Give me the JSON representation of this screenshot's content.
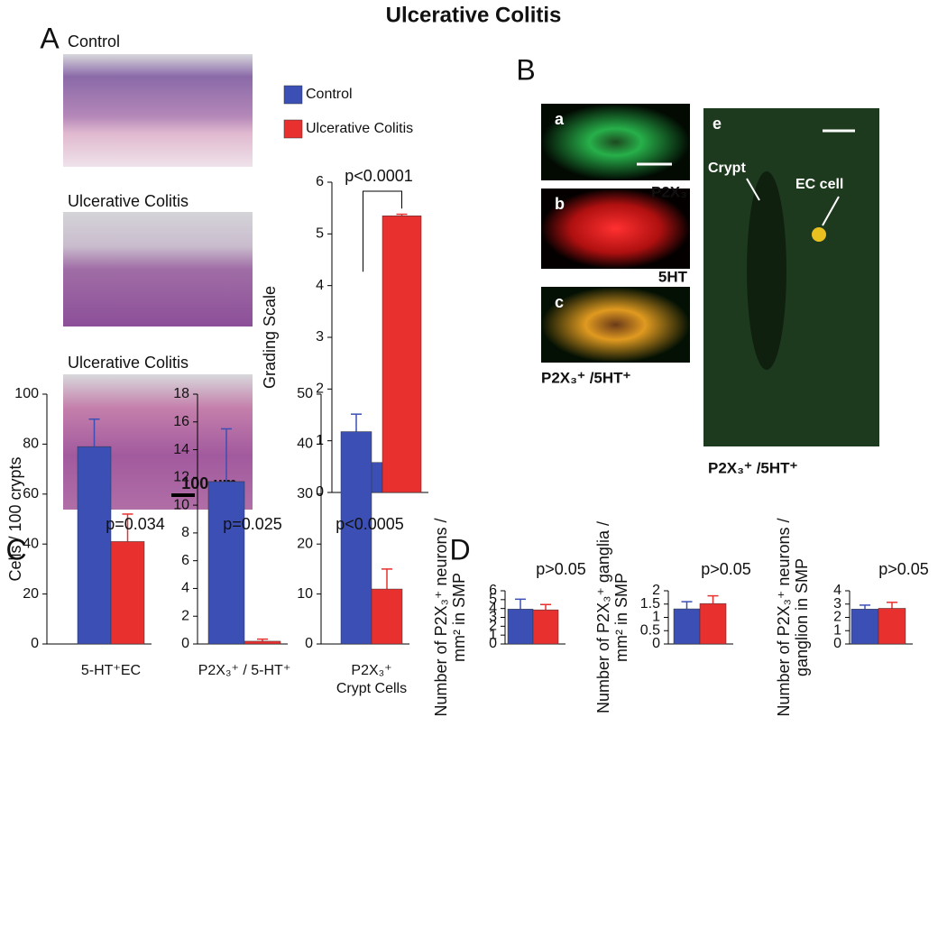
{
  "title": "Ulcerative Colitis",
  "panel_labels": [
    "A",
    "B",
    "C",
    "D"
  ],
  "histology": {
    "labels": [
      "Control",
      "Ulcerative Colitis",
      "Ulcerative Colitis"
    ],
    "scale_bar": "100 µm"
  },
  "fluorescence": {
    "letters": [
      "a",
      "b",
      "c",
      "e"
    ],
    "labels": [
      "P2X₃",
      "5HT",
      "P2X₃⁺ /5HT⁺",
      "P2X₃⁺ /5HT⁺"
    ],
    "annotations": [
      "Crypt",
      "EC cell"
    ]
  },
  "chart_data": [
    {
      "type": "bar",
      "categories": [
        null
      ],
      "ylabel": [
        "Grading Scale"
      ],
      "annotation": "p<0.0001",
      "ylim": [
        0,
        6
      ],
      "yticks": [
        0,
        1,
        2,
        3,
        4,
        5,
        6
      ],
      "series": [
        {
          "name": "Control",
          "color": "#3b4fb5",
          "values": [
            0.58
          ],
          "errors": [
            0.2
          ]
        },
        {
          "name": "Ulcerative Colitis",
          "color": "#e8302f",
          "values": [
            5.35
          ],
          "errors": [
            0.03
          ]
        }
      ]
    },
    {
      "type": "bar",
      "categories": [
        [
          "5-HT⁺EC"
        ]
      ],
      "ylabel": [
        "Cells / 100 crypts"
      ],
      "annotation": "p=0.034",
      "ylim": [
        0,
        100
      ],
      "yticks": [
        0,
        20,
        40,
        60,
        80,
        100
      ],
      "series": [
        {
          "color": "#3b4fb5",
          "values": [
            79
          ],
          "errors": [
            11
          ]
        },
        {
          "color": "#e8302f",
          "values": [
            41
          ],
          "errors": [
            11
          ]
        }
      ]
    },
    {
      "type": "bar",
      "categories": [
        [
          "P2X₃⁺ / 5-HT⁺"
        ]
      ],
      "annotation": "p=0.025",
      "ylim": [
        0,
        18
      ],
      "yticks": [
        0,
        2,
        4,
        6,
        8,
        10,
        12,
        14,
        16,
        18
      ],
      "series": [
        {
          "color": "#3b4fb5",
          "values": [
            11.7
          ],
          "errors": [
            3.8
          ]
        },
        {
          "color": "#e8302f",
          "values": [
            0.2
          ],
          "errors": [
            0.15
          ]
        }
      ]
    },
    {
      "type": "bar",
      "categories": [
        [
          "P2X₃⁺",
          "Crypt Cells"
        ]
      ],
      "annotation": "p<0.0005",
      "ylim": [
        0,
        50
      ],
      "yticks": [
        0,
        10,
        20,
        30,
        40,
        50
      ],
      "series": [
        {
          "color": "#3b4fb5",
          "values": [
            42.5
          ],
          "errors": [
            3.5
          ]
        },
        {
          "color": "#e8302f",
          "values": [
            11
          ],
          "errors": [
            4
          ]
        }
      ]
    },
    {
      "type": "bar",
      "categories": [
        null
      ],
      "ylabel": [
        "Number of P2X₃⁺ neurons /",
        "mm² in SMP"
      ],
      "annotation": "p>0.05",
      "ylim": [
        0,
        6
      ],
      "yticks": [
        0,
        1,
        2,
        3,
        4,
        5,
        6
      ],
      "series": [
        {
          "color": "#3b4fb5",
          "values": [
            3.93
          ],
          "errors": [
            1.12
          ]
        },
        {
          "color": "#e8302f",
          "values": [
            3.85
          ],
          "errors": [
            0.6
          ]
        }
      ]
    },
    {
      "type": "bar",
      "categories": [
        null
      ],
      "ylabel": [
        "Number of P2X₃⁺ ganglia /",
        "mm² in SMP"
      ],
      "annotation": "p>0.05",
      "ylim": [
        0,
        2
      ],
      "yticks": [
        0,
        0.5,
        1,
        1.5,
        2
      ],
      "series": [
        {
          "color": "#3b4fb5",
          "values": [
            1.32
          ],
          "errors": [
            0.27
          ]
        },
        {
          "color": "#e8302f",
          "values": [
            1.52
          ],
          "errors": [
            0.29
          ]
        }
      ]
    },
    {
      "type": "bar",
      "categories": [
        null
      ],
      "ylabel": [
        "Number of P2X₃⁺ neurons /",
        "ganglion in SMP"
      ],
      "annotation": "p>0.05",
      "ylim": [
        0,
        4
      ],
      "yticks": [
        0,
        1,
        2,
        3,
        4
      ],
      "series": [
        {
          "color": "#3b4fb5",
          "values": [
            2.62
          ],
          "errors": [
            0.3
          ]
        },
        {
          "color": "#e8302f",
          "values": [
            2.68
          ],
          "errors": [
            0.45
          ]
        }
      ]
    }
  ]
}
